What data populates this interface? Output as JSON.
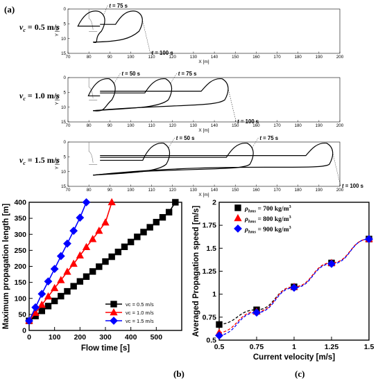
{
  "labels": {
    "a": "(a)",
    "b": "(b)",
    "c": "(c)"
  },
  "chart_data": [
    {
      "type": "line",
      "panel": "a",
      "subplots": [
        {
          "label": "v_c = 0.5 m/s",
          "label_var": "v",
          "label_sub": "c",
          "label_rest": " = 0.5 m/s",
          "xlabel": "X [m]",
          "ylabel": "Y [m]",
          "xlim": [
            70,
            200
          ],
          "ylim": [
            15,
            0
          ],
          "xticks": [
            70,
            80,
            90,
            100,
            110,
            120,
            130,
            140,
            150,
            160,
            170,
            180,
            190,
            200
          ],
          "yticks": [
            0,
            5,
            10,
            15
          ],
          "annotations": [
            "t = 75 s",
            "t = 100 s"
          ],
          "fronts_x": [
            88,
            106
          ]
        },
        {
          "label": "v_c = 1.0 m/s",
          "label_var": "v",
          "label_sub": "c",
          "label_rest": " = 1.0 m/s",
          "xlabel": "X [m]",
          "ylabel": "Y [m]",
          "xlim": [
            70,
            200
          ],
          "ylim": [
            15,
            0
          ],
          "xticks": [
            70,
            80,
            90,
            100,
            110,
            120,
            130,
            140,
            150,
            160,
            170,
            180,
            190,
            200
          ],
          "yticks": [
            0,
            5,
            10,
            15
          ],
          "annotations": [
            "t = 50 s",
            "t = 75 s",
            "t = 100 s"
          ],
          "fronts_x": [
            93,
            120,
            147
          ]
        },
        {
          "label": "v_c = 1.5 m/s",
          "label_var": "v",
          "label_sub": "c",
          "label_rest": " = 1.5 m/s",
          "xlabel": "X [m]",
          "ylabel": "Y [m]",
          "xlim": [
            70,
            200
          ],
          "ylim": [
            15,
            0
          ],
          "xticks": [
            70,
            80,
            90,
            100,
            110,
            120,
            130,
            140,
            150,
            160,
            170,
            180,
            190,
            200
          ],
          "yticks": [
            0,
            5,
            10,
            15
          ],
          "annotations": [
            "t = 50 s",
            "t = 75 s",
            "t = 100 s"
          ],
          "fronts_x": [
            119,
            159,
            197
          ]
        }
      ]
    },
    {
      "type": "line",
      "panel": "b",
      "xlabel": "Flow time [s]",
      "ylabel": "Maximum propagation length [m]",
      "xlim": [
        0,
        600
      ],
      "ylim": [
        0,
        400
      ],
      "xticks": [
        0,
        100,
        200,
        300,
        400,
        500
      ],
      "yticks": [
        0,
        50,
        100,
        150,
        200,
        250,
        300,
        350,
        400
      ],
      "legend_position": "lower-right",
      "series": [
        {
          "name": "vc = 0.5 m/s",
          "color": "#000000",
          "marker": "square",
          "x": [
            0,
            25,
            50,
            75,
            100,
            125,
            150,
            175,
            200,
            225,
            250,
            275,
            300,
            325,
            350,
            375,
            400,
            425,
            450,
            475,
            500,
            525,
            550,
            575
          ],
          "y": [
            30,
            45,
            61,
            76,
            92,
            107,
            122,
            138,
            153,
            168,
            184,
            199,
            215,
            230,
            245,
            261,
            276,
            292,
            307,
            322,
            338,
            353,
            369,
            400
          ]
        },
        {
          "name": "vc = 1.0 m/s",
          "color": "#ff0000",
          "marker": "triangle",
          "x": [
            0,
            25,
            50,
            75,
            100,
            125,
            150,
            175,
            200,
            225,
            250,
            275,
            300,
            325
          ],
          "y": [
            30,
            55,
            80,
            106,
            132,
            157,
            183,
            208,
            234,
            260,
            285,
            311,
            337,
            400
          ]
        },
        {
          "name": "vc = 1.5 m/s",
          "color": "#0000ff",
          "marker": "diamond",
          "x": [
            0,
            25,
            50,
            75,
            100,
            125,
            150,
            175,
            200,
            225
          ],
          "y": [
            30,
            72,
            114,
            153,
            192,
            232,
            271,
            311,
            352,
            400
          ]
        }
      ]
    },
    {
      "type": "line",
      "panel": "c",
      "xlabel": "Current velocity [m/s]",
      "ylabel": "Averaged Propagation speed [m/s]",
      "xlim": [
        0.5,
        1.5
      ],
      "ylim": [
        0.5,
        2
      ],
      "xticks": [
        0.5,
        0.75,
        1,
        1.25,
        1.5
      ],
      "yticks": [
        0.5,
        0.75,
        1,
        1.25,
        1.5,
        1.75,
        2
      ],
      "legend_position": "top-left",
      "categories": [
        0.5,
        0.75,
        1.0,
        1.25,
        1.5
      ],
      "series": [
        {
          "name": "ρhms = 700 kg/m3",
          "name_main": "ρ",
          "name_sub": "hms",
          "name_rest": " = 700 kg/m",
          "name_sup": "3",
          "color": "#000000",
          "marker": "square",
          "values": [
            0.67,
            0.83,
            1.08,
            1.34,
            1.6
          ]
        },
        {
          "name": "ρhms = 800 kg/m3",
          "name_main": "ρ",
          "name_sub": "hms",
          "name_rest": " = 800 kg/m",
          "name_sup": "3",
          "color": "#ff0000",
          "marker": "triangle",
          "values": [
            0.58,
            0.81,
            1.08,
            1.34,
            1.6
          ]
        },
        {
          "name": "ρhms = 900 kg/m3",
          "name_main": "ρ",
          "name_sub": "hms",
          "name_rest": " = 900 kg/m",
          "name_sup": "3",
          "color": "#0000ff",
          "marker": "diamond",
          "values": [
            0.55,
            0.8,
            1.07,
            1.33,
            1.6
          ]
        }
      ]
    }
  ]
}
